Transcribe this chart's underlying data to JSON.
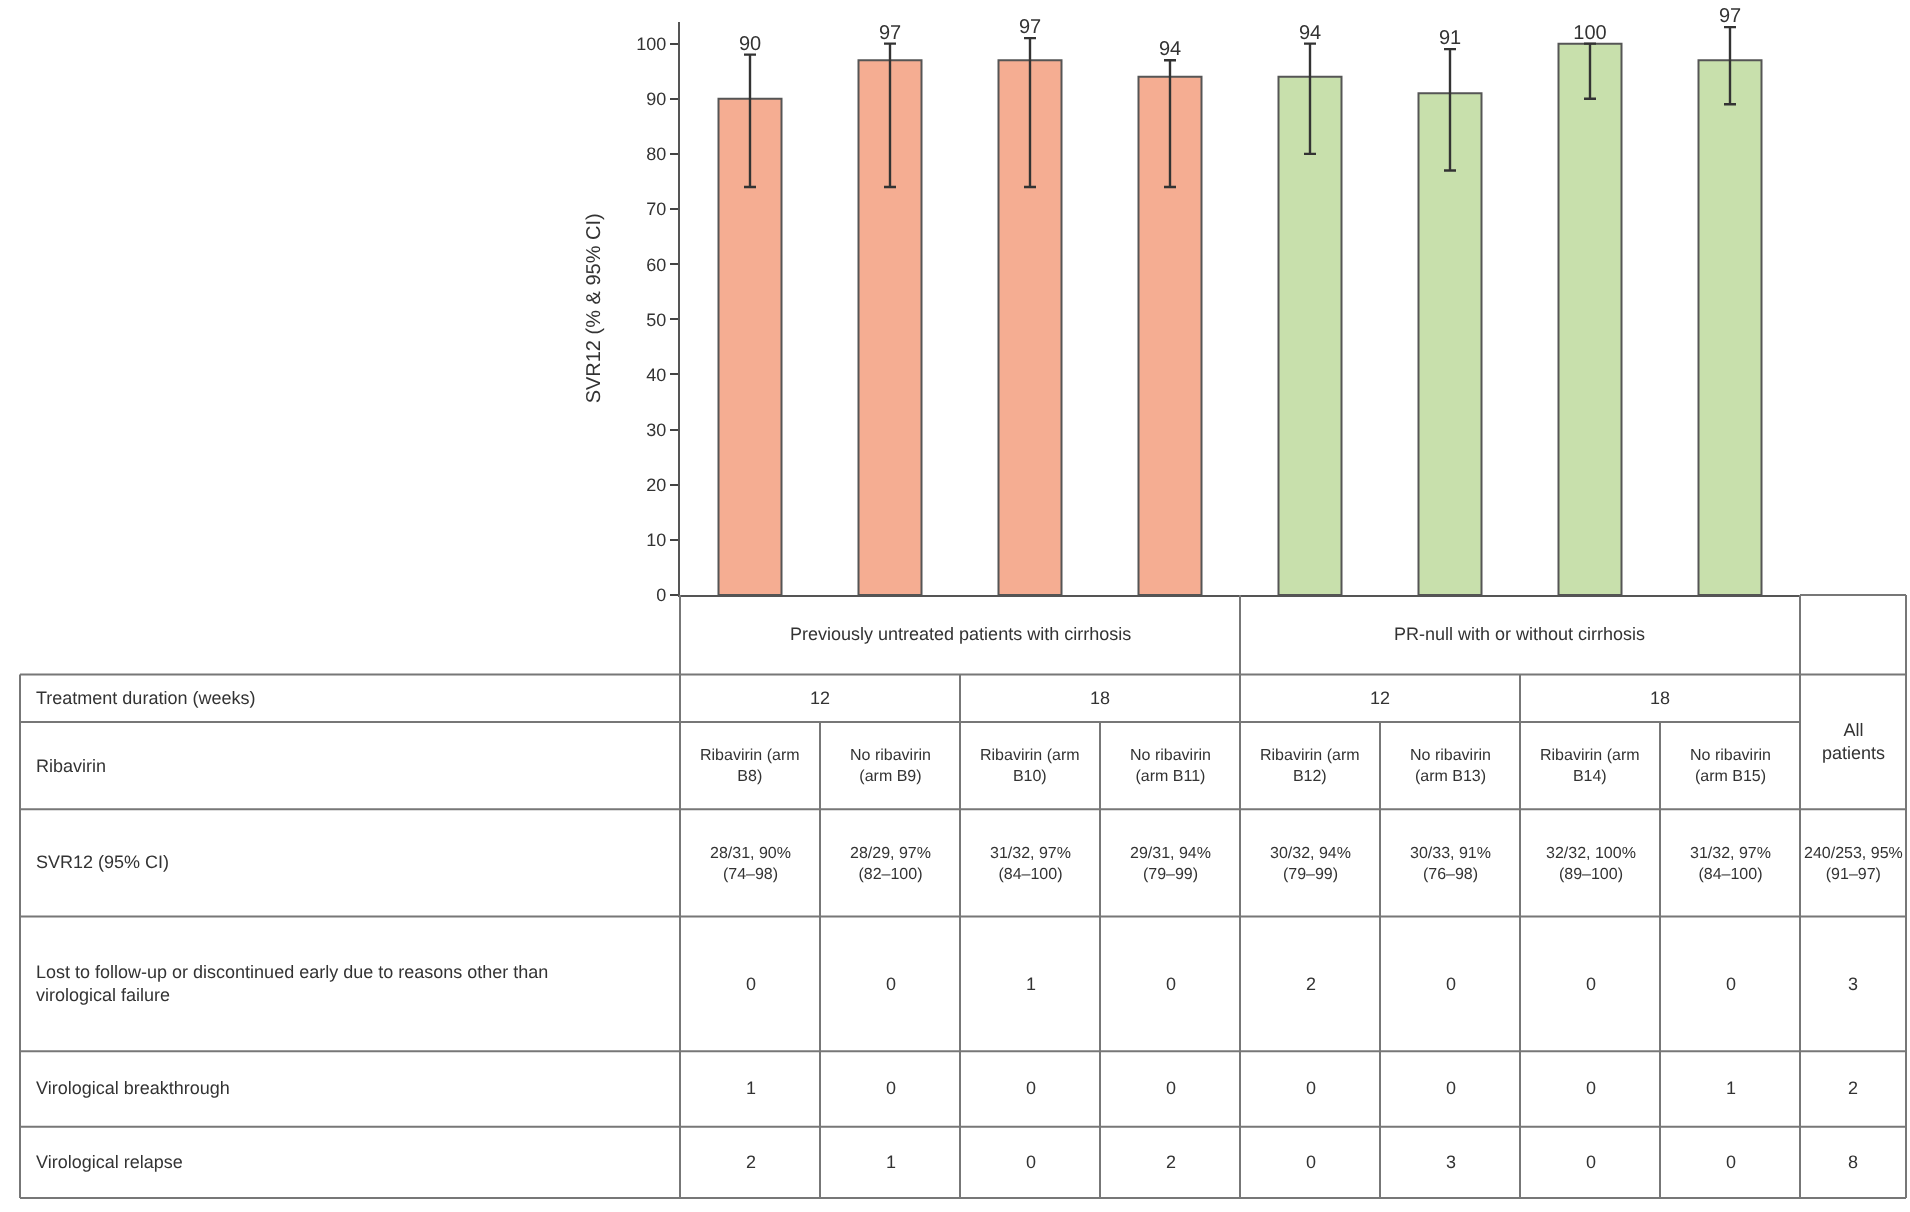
{
  "chart_data": {
    "type": "bar",
    "ylabel": "SVR12 (% & 95% CI)",
    "categories": [
      null,
      null,
      null,
      null,
      null,
      null,
      null,
      null
    ],
    "values": [
      90,
      97,
      97,
      94,
      94,
      91,
      100,
      97
    ],
    "colors": [
      "#f5ad92",
      "#f5ad92",
      "#f5ad92",
      "#f5ad92",
      "#c8e0ac",
      "#c8e0ac",
      "#c8e0ac",
      "#c8e0ac"
    ],
    "errors": [
      [
        74,
        98
      ],
      [
        74,
        100
      ],
      [
        74,
        101
      ],
      [
        74,
        97
      ],
      [
        80,
        100
      ],
      [
        77,
        99
      ],
      [
        90,
        100
      ],
      [
        89,
        103
      ]
    ],
    "ylim": [
      0,
      104
    ],
    "yticks": [
      0,
      10,
      20,
      30,
      40,
      50,
      60,
      70,
      80,
      90,
      100
    ],
    "data_labels": true,
    "legend": false,
    "annotations": [
      "Previously untreated patients with cirrhosis",
      "PR-null with or without cirrhosis",
      "Treatment duration (weeks)",
      "12",
      "18",
      "12",
      "18",
      "All patients",
      "Ribavirin",
      "Ribavirin (arm B8)",
      "No ribavirin (arm B9)",
      "Ribavirin (arm B10)",
      "No ribavirin (arm B11)",
      "Ribavirin (arm B12)",
      "No ribavirin (arm B13)",
      "Ribavirin (arm B14)",
      "No ribavirin (arm B15)",
      "SVR12 (95% CI)",
      "28/31, 90% (74–98)",
      "28/29, 97% (82–100)",
      "31/32, 97% (84–100)",
      "29/31, 94% (79–99)",
      "30/32, 94% (79–99)",
      "30/33, 91% (76–98)",
      "32/32, 100% (89–100)",
      "31/32, 97% (84–100)",
      "240/253, 95% (91–97)",
      "Lost to follow-up or discontinued early due to reasons other than virological failure",
      "0",
      "0",
      "1",
      "0",
      "2",
      "0",
      "0",
      "0",
      "3",
      "Virological breakthrough",
      "1",
      "0",
      "0",
      "0",
      "0",
      "0",
      "0",
      "1",
      "2",
      "Virological relapse",
      "2",
      "1",
      "0",
      "2",
      "0",
      "3",
      "0",
      "0",
      "8"
    ]
  }
}
